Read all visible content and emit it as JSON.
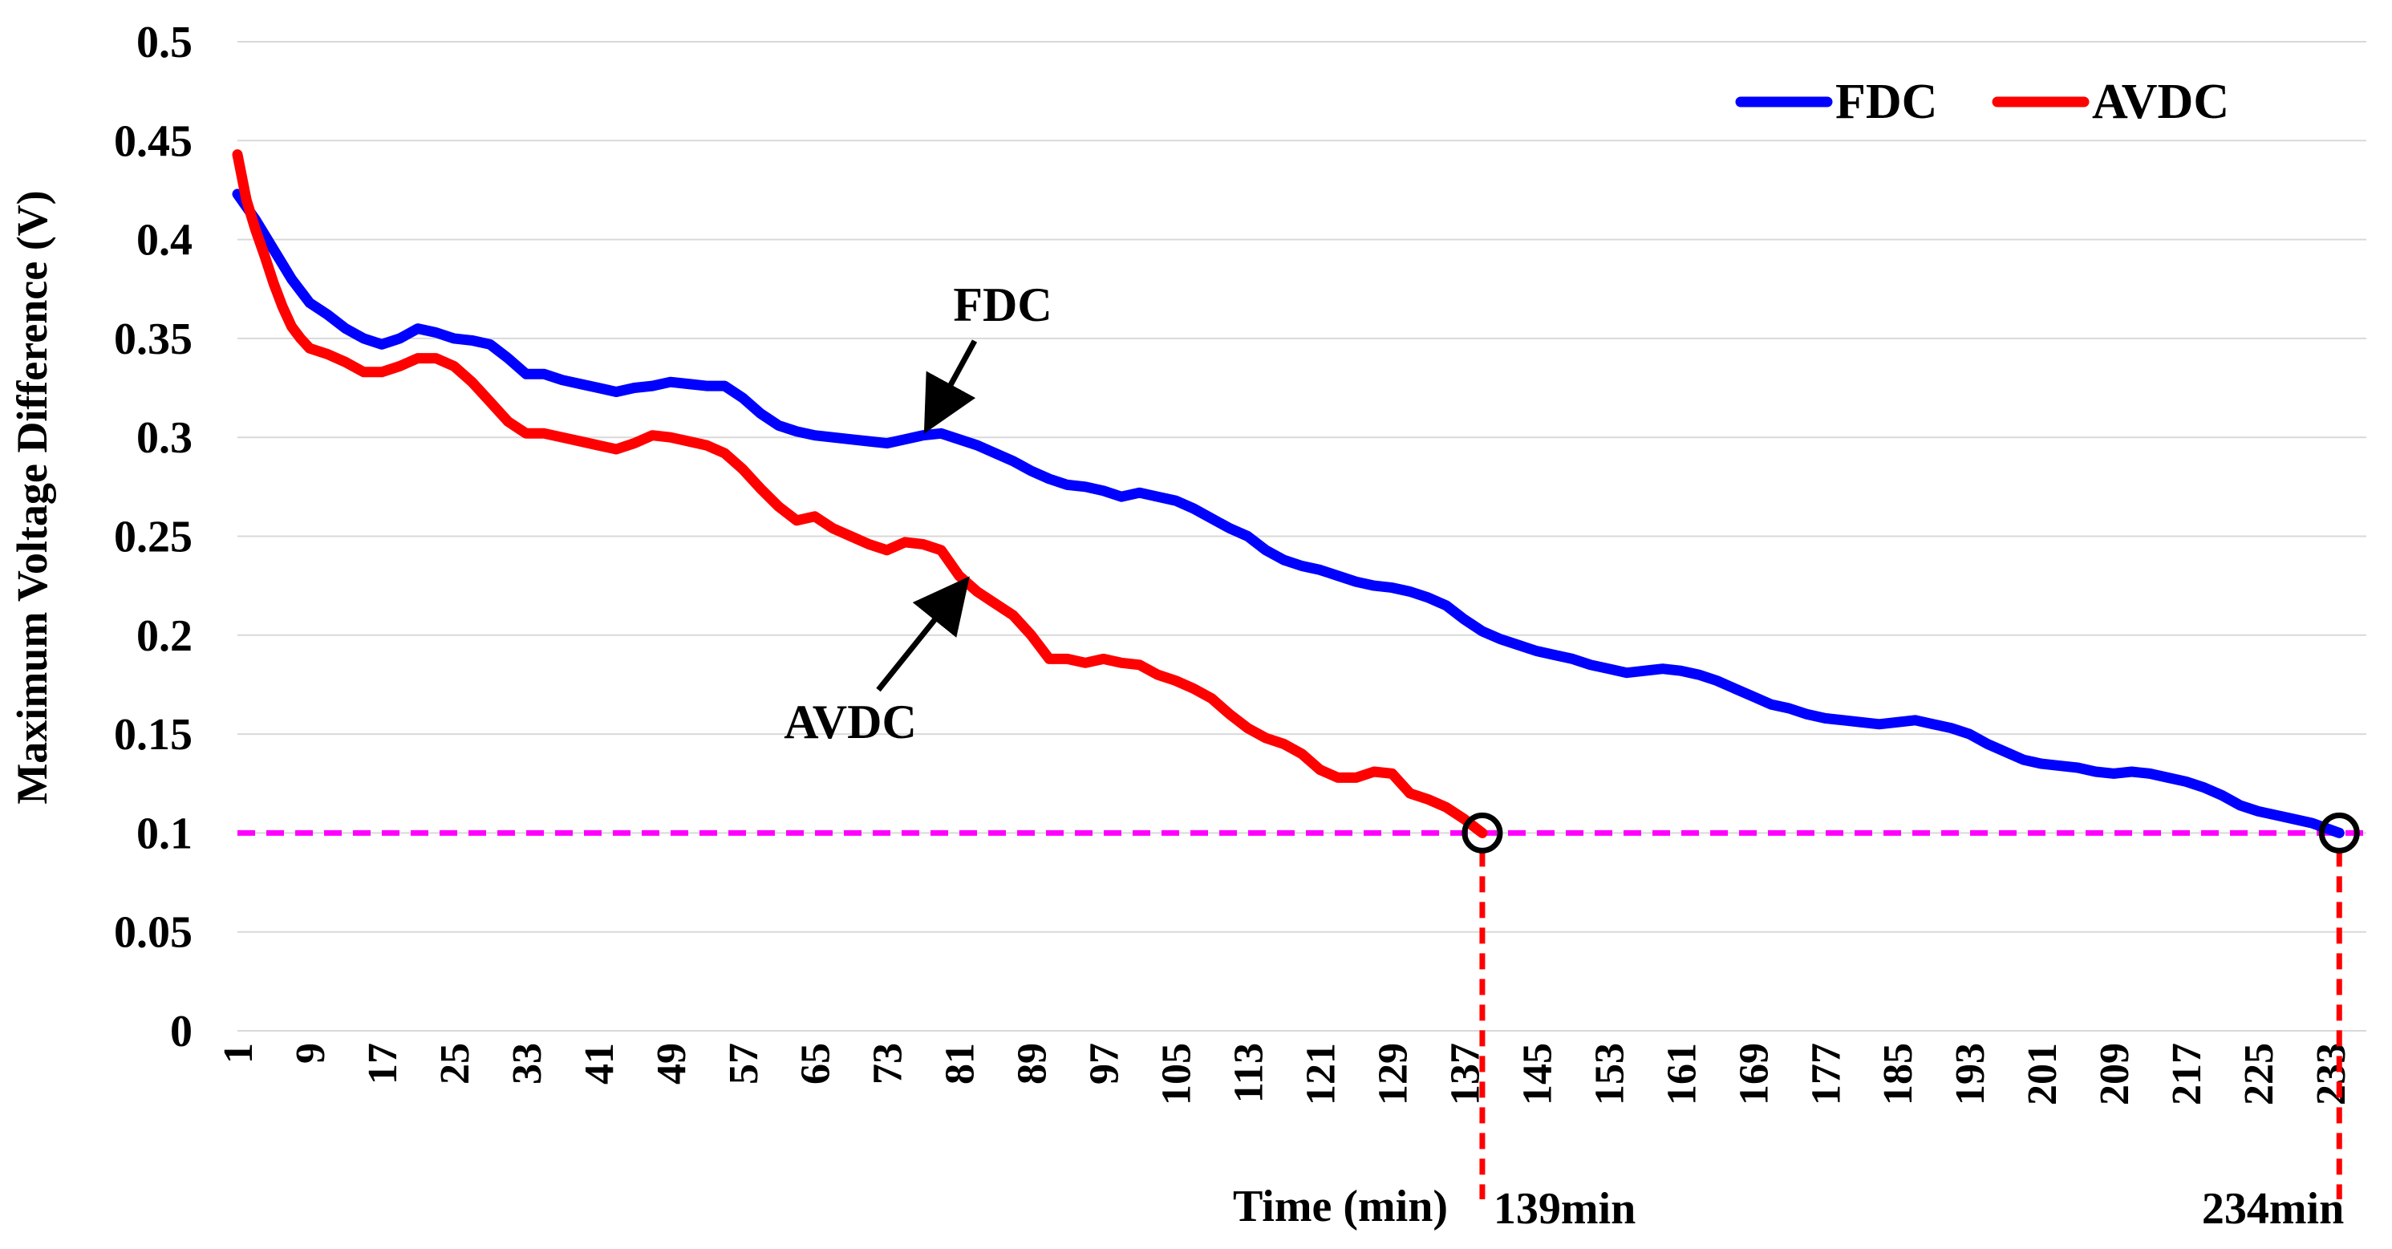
{
  "chart_data": {
    "type": "line",
    "title": "",
    "xlabel": "Time (min)",
    "ylabel": "Maximum Voltage Difference (V)",
    "xlim": [
      1,
      237
    ],
    "ylim": [
      0,
      0.5
    ],
    "y_ticks": [
      "0",
      "0.05",
      "0.1",
      "0.15",
      "0.2",
      "0.25",
      "0.3",
      "0.35",
      "0.4",
      "0.45",
      "0.5"
    ],
    "y_tick_values": [
      0,
      0.05,
      0.1,
      0.15,
      0.2,
      0.25,
      0.3,
      0.35,
      0.4,
      0.45,
      0.5
    ],
    "x_ticks": [
      "1",
      "9",
      "17",
      "25",
      "33",
      "41",
      "49",
      "57",
      "65",
      "73",
      "81",
      "89",
      "97",
      "105",
      "113",
      "121",
      "129",
      "137",
      "145",
      "153",
      "161",
      "169",
      "177",
      "185",
      "193",
      "201",
      "209",
      "217",
      "225",
      "233"
    ],
    "x_tick_values": [
      1,
      9,
      17,
      25,
      33,
      41,
      49,
      57,
      65,
      73,
      81,
      89,
      97,
      105,
      113,
      121,
      129,
      137,
      145,
      153,
      161,
      169,
      177,
      185,
      193,
      201,
      209,
      217,
      225,
      233
    ],
    "grid": true,
    "legend_position": "top-right",
    "threshold": {
      "value": 0.1,
      "color": "#ff00ff"
    },
    "series": [
      {
        "name": "FDC",
        "color": "#0000ff",
        "x": [
          1,
          3,
          5,
          7,
          9,
          11,
          13,
          15,
          17,
          19,
          21,
          23,
          25,
          27,
          29,
          31,
          33,
          35,
          37,
          39,
          41,
          43,
          45,
          47,
          49,
          51,
          53,
          55,
          57,
          59,
          61,
          63,
          65,
          67,
          69,
          71,
          73,
          75,
          77,
          79,
          81,
          83,
          85,
          87,
          89,
          91,
          93,
          95,
          97,
          99,
          101,
          103,
          105,
          107,
          109,
          111,
          113,
          115,
          117,
          119,
          121,
          123,
          125,
          127,
          129,
          131,
          133,
          135,
          137,
          139,
          141,
          143,
          145,
          147,
          149,
          151,
          153,
          155,
          157,
          159,
          161,
          163,
          165,
          167,
          169,
          171,
          173,
          175,
          177,
          179,
          181,
          183,
          185,
          187,
          189,
          191,
          193,
          195,
          197,
          199,
          201,
          203,
          205,
          207,
          209,
          211,
          213,
          215,
          217,
          219,
          221,
          223,
          225,
          227,
          229,
          231,
          234
        ],
        "y": [
          0.423,
          0.41,
          0.395,
          0.38,
          0.368,
          0.362,
          0.355,
          0.35,
          0.347,
          0.35,
          0.355,
          0.353,
          0.35,
          0.349,
          0.347,
          0.34,
          0.332,
          0.332,
          0.329,
          0.327,
          0.325,
          0.323,
          0.325,
          0.326,
          0.328,
          0.327,
          0.326,
          0.326,
          0.32,
          0.312,
          0.306,
          0.303,
          0.301,
          0.3,
          0.299,
          0.298,
          0.297,
          0.299,
          0.301,
          0.302,
          0.299,
          0.296,
          0.292,
          0.288,
          0.283,
          0.279,
          0.276,
          0.275,
          0.273,
          0.27,
          0.272,
          0.27,
          0.268,
          0.264,
          0.259,
          0.254,
          0.25,
          0.243,
          0.238,
          0.235,
          0.233,
          0.23,
          0.227,
          0.225,
          0.224,
          0.222,
          0.219,
          0.215,
          0.208,
          0.202,
          0.198,
          0.195,
          0.192,
          0.19,
          0.188,
          0.185,
          0.183,
          0.181,
          0.182,
          0.183,
          0.182,
          0.18,
          0.177,
          0.173,
          0.169,
          0.165,
          0.163,
          0.16,
          0.158,
          0.157,
          0.156,
          0.155,
          0.156,
          0.157,
          0.155,
          0.153,
          0.15,
          0.145,
          0.141,
          0.137,
          0.135,
          0.134,
          0.133,
          0.131,
          0.13,
          0.131,
          0.13,
          0.128,
          0.126,
          0.123,
          0.119,
          0.114,
          0.111,
          0.109,
          0.107,
          0.105,
          0.1
        ]
      },
      {
        "name": "AVDC",
        "color": "#ff0000",
        "x": [
          1,
          2,
          3,
          4,
          5,
          6,
          7,
          8,
          9,
          11,
          13,
          15,
          17,
          19,
          21,
          23,
          25,
          27,
          29,
          31,
          33,
          35,
          37,
          39,
          41,
          43,
          45,
          47,
          49,
          51,
          53,
          55,
          57,
          59,
          61,
          63,
          65,
          67,
          69,
          71,
          73,
          75,
          77,
          79,
          81,
          83,
          85,
          87,
          89,
          91,
          93,
          95,
          97,
          99,
          101,
          103,
          105,
          107,
          109,
          111,
          113,
          115,
          117,
          119,
          121,
          123,
          125,
          127,
          129,
          131,
          133,
          135,
          137,
          139
        ],
        "y": [
          0.443,
          0.42,
          0.405,
          0.392,
          0.378,
          0.366,
          0.356,
          0.35,
          0.345,
          0.342,
          0.338,
          0.333,
          0.333,
          0.336,
          0.34,
          0.34,
          0.336,
          0.328,
          0.318,
          0.308,
          0.302,
          0.302,
          0.3,
          0.298,
          0.296,
          0.294,
          0.297,
          0.301,
          0.3,
          0.298,
          0.296,
          0.292,
          0.284,
          0.274,
          0.265,
          0.258,
          0.26,
          0.254,
          0.25,
          0.246,
          0.243,
          0.247,
          0.246,
          0.243,
          0.23,
          0.222,
          0.216,
          0.21,
          0.2,
          0.188,
          0.188,
          0.186,
          0.188,
          0.186,
          0.185,
          0.18,
          0.177,
          0.173,
          0.168,
          0.16,
          0.153,
          0.148,
          0.145,
          0.14,
          0.132,
          0.128,
          0.128,
          0.131,
          0.13,
          0.12,
          0.117,
          0.113,
          0.107,
          0.1
        ]
      }
    ],
    "annotations": [
      {
        "label": "FDC",
        "series": "FDC",
        "x": 78,
        "y": 0.302
      },
      {
        "label": "AVDC",
        "series": "AVDC",
        "x": 81,
        "y": 0.228
      }
    ],
    "markers": [
      {
        "label": "139min",
        "x": 139,
        "y": 0.1
      },
      {
        "label": "234min",
        "x": 234,
        "y": 0.1
      }
    ]
  }
}
